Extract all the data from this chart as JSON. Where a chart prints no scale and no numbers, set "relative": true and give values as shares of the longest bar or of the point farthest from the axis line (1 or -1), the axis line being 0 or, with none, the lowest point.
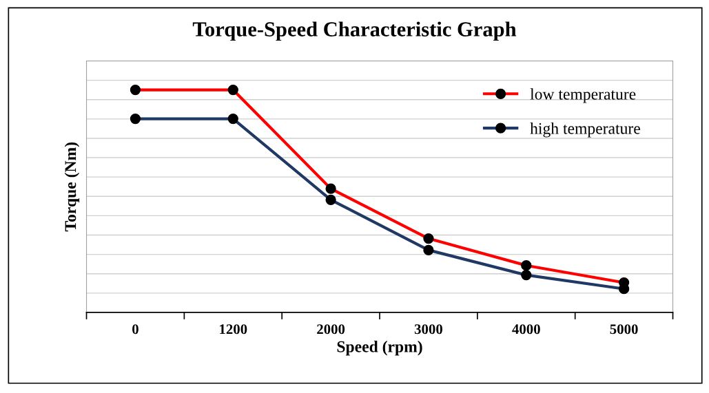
{
  "chart_data": {
    "type": "line",
    "title": "Torque-Speed Characteristic Graph",
    "xlabel": "Speed (rpm)",
    "ylabel": "Torque (Nm)",
    "categories": [
      "0",
      "1200",
      "2000",
      "3000",
      "4000",
      "5000"
    ],
    "relative": true,
    "grid": "y",
    "legend": "top right",
    "marker": "circle",
    "line_style": "solid",
    "series": [
      {
        "name": "low temperature",
        "color": "#ff0000",
        "values": [
          1.0,
          1.0,
          0.556,
          0.332,
          0.211,
          0.134
        ]
      },
      {
        "name": "high temperature",
        "color": "#1f3864",
        "values": [
          0.87,
          0.87,
          0.506,
          0.28,
          0.168,
          0.106
        ]
      }
    ]
  }
}
